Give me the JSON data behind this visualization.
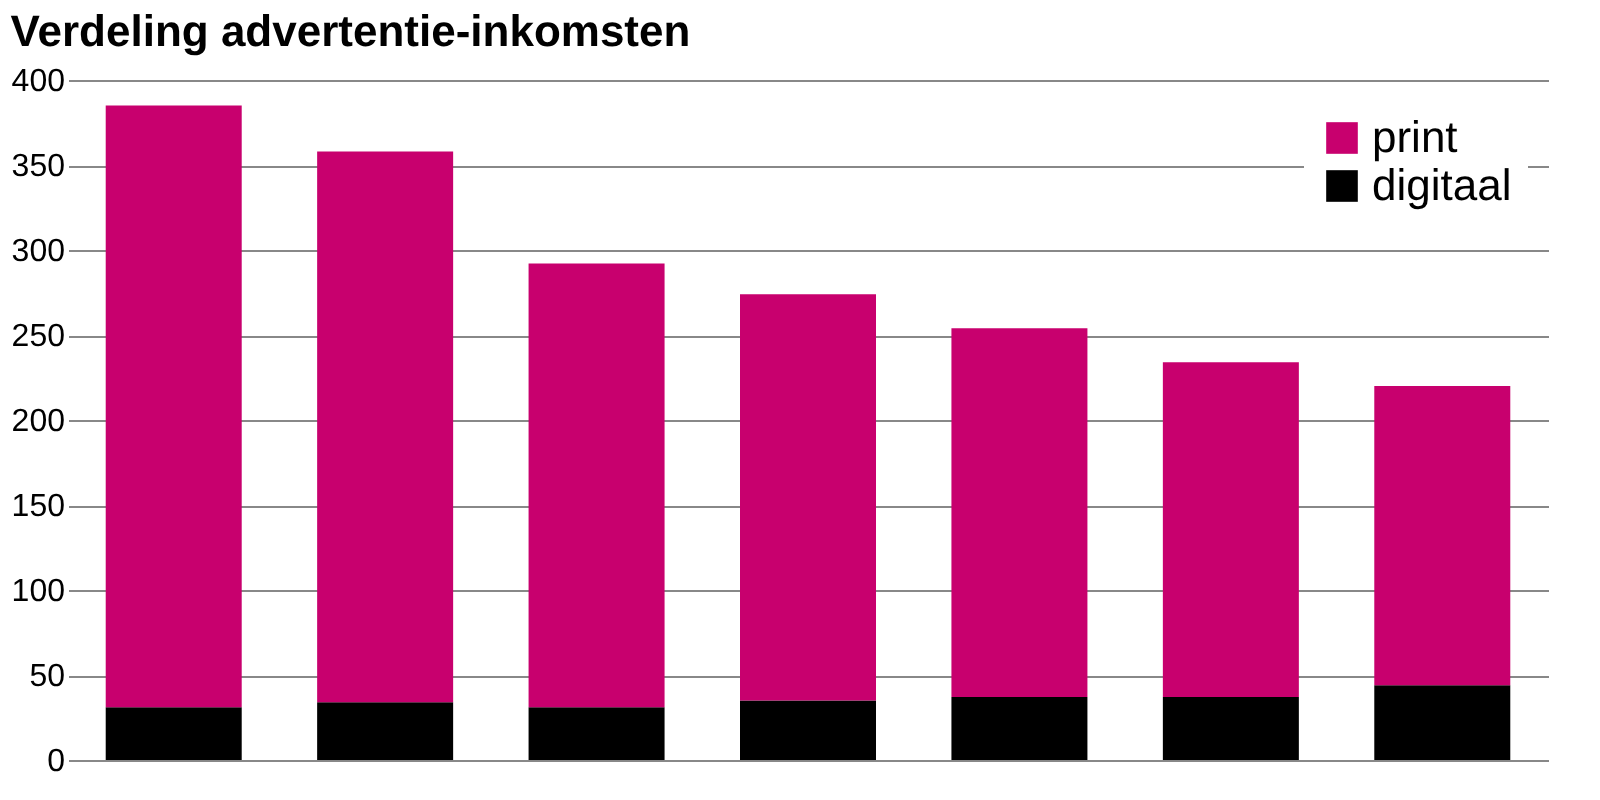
{
  "chart_data": {
    "type": "bar",
    "title": "Verdeling advertentie-inkomsten",
    "categories": [
      null,
      null,
      null,
      null,
      null,
      null,
      null
    ],
    "stacked": true,
    "series": [
      {
        "name": "digitaal",
        "color": "#000000",
        "values": [
          31,
          34,
          31,
          35,
          37,
          37,
          44
        ]
      },
      {
        "name": "print",
        "color": "#c8006e",
        "values": [
          354,
          324,
          261,
          239,
          217,
          197,
          176
        ]
      }
    ],
    "ylim": [
      0,
      400
    ],
    "yticks": [
      0,
      50,
      100,
      150,
      200,
      250,
      300,
      350,
      400
    ],
    "grid": "y",
    "legend": "top right",
    "tick_labels": "y"
  }
}
